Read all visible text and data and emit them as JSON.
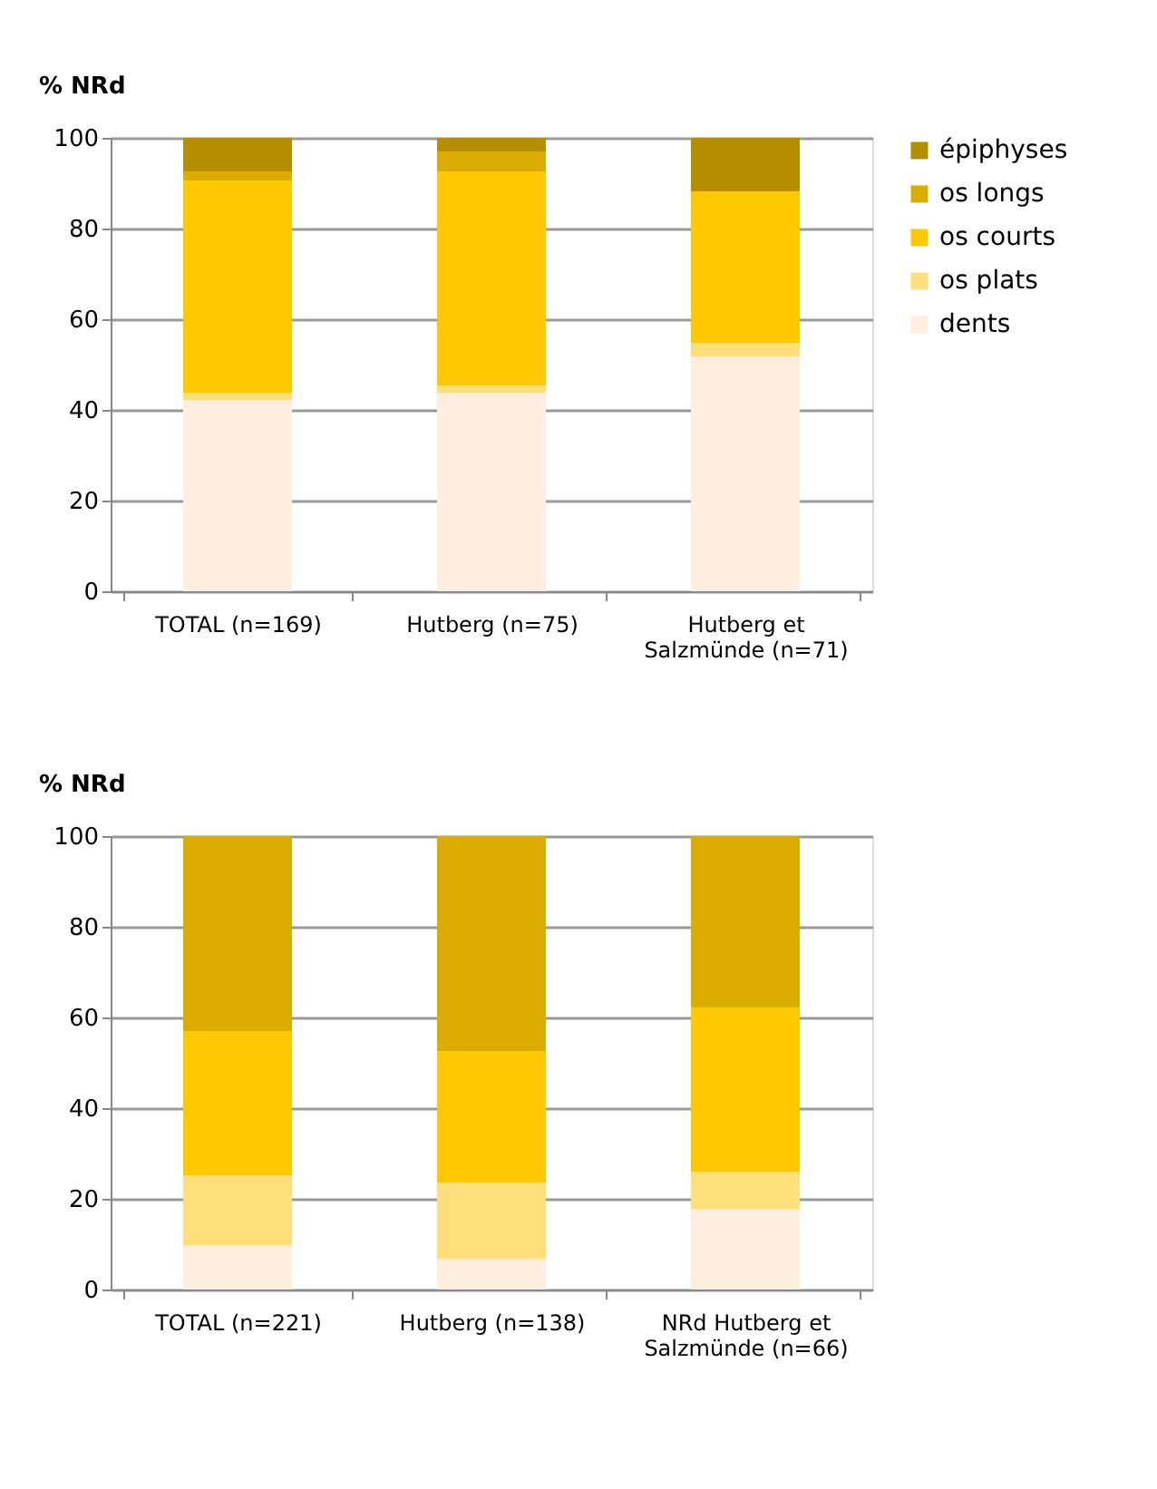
{
  "chart_data": [
    {
      "type": "bar",
      "stacked": true,
      "ylabel": "% NRd",
      "categories": [
        "TOTAL (n=169)",
        "Hutberg (n=75)",
        "Hutberg et Salzmünde (n=71)"
      ],
      "ylim": [
        0,
        100
      ],
      "yticks": [
        0,
        20,
        40,
        60,
        80,
        100
      ],
      "grid": "y",
      "legend": "right",
      "series": [
        {
          "name": "dents",
          "color": "#fdeee0",
          "values": [
            42.1,
            43.7,
            51.7
          ]
        },
        {
          "name": "os plats",
          "color": "#ffdf7a",
          "values": [
            1.6,
            1.7,
            3.1
          ]
        },
        {
          "name": "os courts",
          "color": "#fdc800",
          "values": [
            46.9,
            47.2,
            33.4
          ]
        },
        {
          "name": "os longs",
          "color": "#dbad00",
          "values": [
            2.0,
            4.4,
            0
          ]
        },
        {
          "name": "épiphyses",
          "color": "#b58f00",
          "values": [
            7.4,
            3.0,
            11.8
          ]
        }
      ]
    },
    {
      "type": "bar",
      "stacked": true,
      "ylabel": "% NRd",
      "categories": [
        "TOTAL (n=221)",
        "Hutberg (n=138)",
        "NRd Hutberg et Salzmünde (n=66)"
      ],
      "ylim": [
        0,
        100
      ],
      "yticks": [
        0,
        20,
        40,
        60,
        80,
        100
      ],
      "grid": "y",
      "legend": "right",
      "series": [
        {
          "name": "dents",
          "color": "#fdeee0",
          "values": [
            9.7,
            6.7,
            17.7
          ]
        },
        {
          "name": "os plats",
          "color": "#ffdf7a",
          "values": [
            15.4,
            16.8,
            8.2
          ]
        },
        {
          "name": "os courts",
          "color": "#fdc800",
          "values": [
            31.9,
            29.1,
            36.2
          ]
        },
        {
          "name": "os longs",
          "color": "#dbad00",
          "values": [
            43.0,
            47.4,
            37.9
          ]
        }
      ]
    }
  ]
}
